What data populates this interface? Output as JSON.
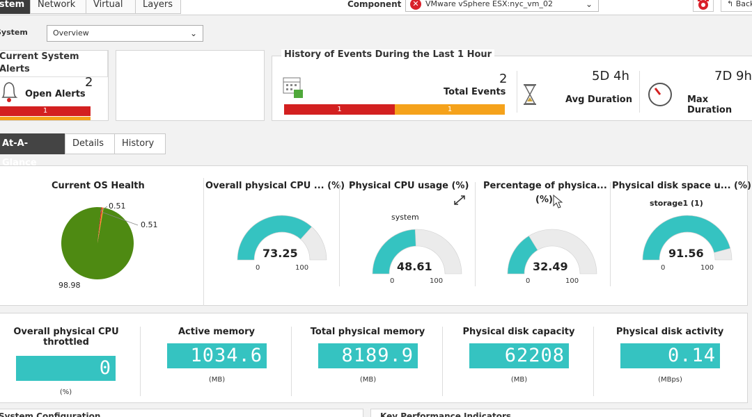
{
  "top_tabs": [
    "System",
    "Network",
    "Virtual",
    "Layers"
  ],
  "component": {
    "label": "Component",
    "value": "VMware vSphere ESX:nyc_vm_02"
  },
  "back_label": "Back",
  "system": {
    "label": "System",
    "value": "Overview"
  },
  "alerts": {
    "title_line1": "Current System",
    "title_line2": "Alerts",
    "count": "2",
    "label": "Open Alerts",
    "bar_red": "1"
  },
  "history": {
    "title": "History of Events During the Last 1 Hour",
    "total_count": "2",
    "total_label": "Total Events",
    "bar_red": "1",
    "bar_orange": "1",
    "avg_value": "5D 4h",
    "avg_label": "Avg Duration",
    "max_value": "7D 9h",
    "max_label": "Max Duration"
  },
  "sub_tabs": [
    "At-A-Glance",
    "Details",
    "History"
  ],
  "os_health": {
    "title": "Current OS Health",
    "label_a": "0.51",
    "label_b": "0.51",
    "label_main": "98.98"
  },
  "chart_data": {
    "type": "pie",
    "title": "Current OS Health",
    "values": [
      98.98,
      0.51,
      0.51
    ],
    "colors": [
      "#4e8a12",
      "#d9202a",
      "#f5a21b"
    ]
  },
  "gauges": [
    {
      "title": "Overall physical CPU ... (%)",
      "subtitle": "",
      "value": "73.25",
      "min": "0",
      "max": "100"
    },
    {
      "title": "Physical CPU usage (%)",
      "subtitle": "system",
      "value": "48.61",
      "min": "0",
      "max": "100"
    },
    {
      "title_line1": "Percentage of physica...",
      "title_line2": "(%)",
      "subtitle": "",
      "value": "32.49",
      "min": "0",
      "max": "100"
    },
    {
      "title": "Physical disk space u... (%)",
      "subtitle": "storage1 (1)",
      "value": "91.56",
      "min": "0",
      "max": "100"
    }
  ],
  "stats": [
    {
      "title_line1": "Overall physical CPU",
      "title_line2": "throttled",
      "value": "0",
      "unit": "(%)"
    },
    {
      "title": "Active memory",
      "value": "1034.6",
      "unit": "(MB)"
    },
    {
      "title": "Total physical memory",
      "value": "8189.9",
      "unit": "(MB)"
    },
    {
      "title": "Physical disk capacity",
      "value": "62208",
      "unit": "(MB)"
    },
    {
      "title": "Physical disk activity",
      "value": "0.14",
      "unit": "(MBps)"
    }
  ],
  "bottom": {
    "left_title": "System Configuration",
    "right_title": "Key Performance Indicators"
  },
  "colors": {
    "teal": "#35c3c1",
    "red": "#d32020",
    "orange": "#f5a21b",
    "green": "#4e8a12"
  }
}
